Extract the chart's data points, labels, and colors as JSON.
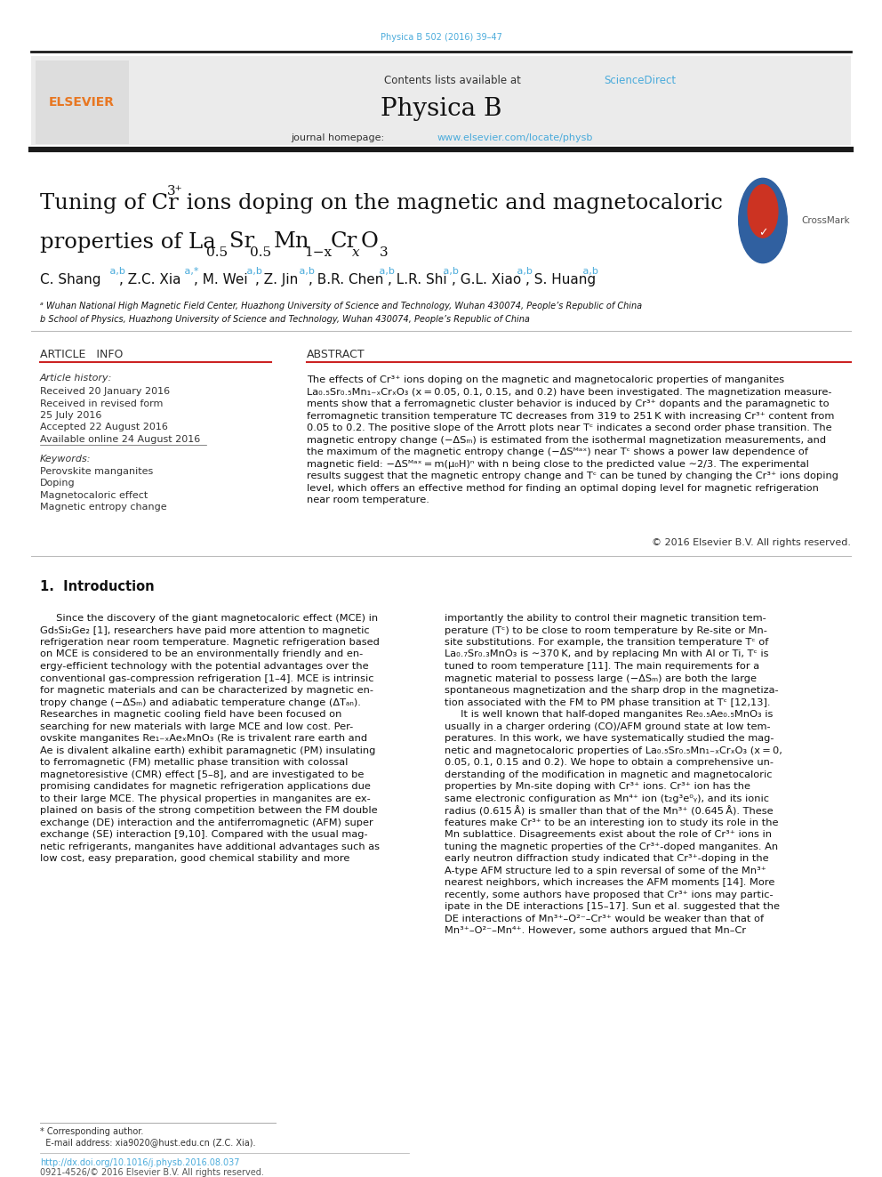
{
  "page_width": 9.92,
  "page_height": 13.23,
  "dpi": 100,
  "journal_ref": "Physica B 502 (2016) 39–47",
  "journal_ref_color": "#4AABDB",
  "header_bg": "#EBEBEB",
  "journal_name": "Physica B",
  "journal_url": "www.elsevier.com/locate/physb",
  "thick_bar_color": "#1A1A1A",
  "keywords": [
    "Perovskite manganites",
    "Doping",
    "Magnetocaloric effect",
    "Magnetic entropy change"
  ],
  "copyright": "© 2016 Elsevier B.V. All rights reserved.",
  "footer_text1": "http://dx.doi.org/10.1016/j.physb.2016.08.037",
  "footer_text2": "0921-4526/© 2016 Elsevier B.V. All rights reserved.",
  "link_color": "#4AABDB",
  "text_color": "#000000",
  "bg_color": "#FFFFFF"
}
